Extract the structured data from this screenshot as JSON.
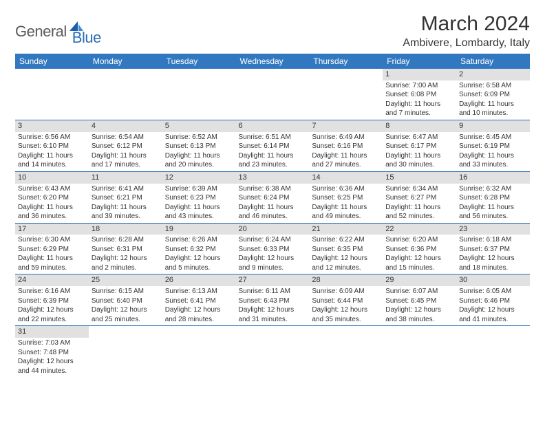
{
  "logo": {
    "dark": "General",
    "blue": "Blue"
  },
  "title": "March 2024",
  "location": "Ambivere, Lombardy, Italy",
  "colors": {
    "header_bg": "#3278c0",
    "header_text": "#ffffff",
    "daynum_bg": "#e1e1e1",
    "row_border": "#2a6db8",
    "text": "#333333",
    "logo_dark": "#5a5a5a",
    "logo_blue": "#2a6db8"
  },
  "typography": {
    "title_fontsize": 30,
    "location_fontsize": 16,
    "header_fontsize": 12,
    "daynum_fontsize": 11,
    "cell_fontsize": 10
  },
  "weekdays": [
    "Sunday",
    "Monday",
    "Tuesday",
    "Wednesday",
    "Thursday",
    "Friday",
    "Saturday"
  ],
  "weeks": [
    [
      null,
      null,
      null,
      null,
      null,
      {
        "n": "1",
        "sunrise": "Sunrise: 7:00 AM",
        "sunset": "Sunset: 6:08 PM",
        "daylight": "Daylight: 11 hours and 7 minutes."
      },
      {
        "n": "2",
        "sunrise": "Sunrise: 6:58 AM",
        "sunset": "Sunset: 6:09 PM",
        "daylight": "Daylight: 11 hours and 10 minutes."
      }
    ],
    [
      {
        "n": "3",
        "sunrise": "Sunrise: 6:56 AM",
        "sunset": "Sunset: 6:10 PM",
        "daylight": "Daylight: 11 hours and 14 minutes."
      },
      {
        "n": "4",
        "sunrise": "Sunrise: 6:54 AM",
        "sunset": "Sunset: 6:12 PM",
        "daylight": "Daylight: 11 hours and 17 minutes."
      },
      {
        "n": "5",
        "sunrise": "Sunrise: 6:52 AM",
        "sunset": "Sunset: 6:13 PM",
        "daylight": "Daylight: 11 hours and 20 minutes."
      },
      {
        "n": "6",
        "sunrise": "Sunrise: 6:51 AM",
        "sunset": "Sunset: 6:14 PM",
        "daylight": "Daylight: 11 hours and 23 minutes."
      },
      {
        "n": "7",
        "sunrise": "Sunrise: 6:49 AM",
        "sunset": "Sunset: 6:16 PM",
        "daylight": "Daylight: 11 hours and 27 minutes."
      },
      {
        "n": "8",
        "sunrise": "Sunrise: 6:47 AM",
        "sunset": "Sunset: 6:17 PM",
        "daylight": "Daylight: 11 hours and 30 minutes."
      },
      {
        "n": "9",
        "sunrise": "Sunrise: 6:45 AM",
        "sunset": "Sunset: 6:19 PM",
        "daylight": "Daylight: 11 hours and 33 minutes."
      }
    ],
    [
      {
        "n": "10",
        "sunrise": "Sunrise: 6:43 AM",
        "sunset": "Sunset: 6:20 PM",
        "daylight": "Daylight: 11 hours and 36 minutes."
      },
      {
        "n": "11",
        "sunrise": "Sunrise: 6:41 AM",
        "sunset": "Sunset: 6:21 PM",
        "daylight": "Daylight: 11 hours and 39 minutes."
      },
      {
        "n": "12",
        "sunrise": "Sunrise: 6:39 AM",
        "sunset": "Sunset: 6:23 PM",
        "daylight": "Daylight: 11 hours and 43 minutes."
      },
      {
        "n": "13",
        "sunrise": "Sunrise: 6:38 AM",
        "sunset": "Sunset: 6:24 PM",
        "daylight": "Daylight: 11 hours and 46 minutes."
      },
      {
        "n": "14",
        "sunrise": "Sunrise: 6:36 AM",
        "sunset": "Sunset: 6:25 PM",
        "daylight": "Daylight: 11 hours and 49 minutes."
      },
      {
        "n": "15",
        "sunrise": "Sunrise: 6:34 AM",
        "sunset": "Sunset: 6:27 PM",
        "daylight": "Daylight: 11 hours and 52 minutes."
      },
      {
        "n": "16",
        "sunrise": "Sunrise: 6:32 AM",
        "sunset": "Sunset: 6:28 PM",
        "daylight": "Daylight: 11 hours and 56 minutes."
      }
    ],
    [
      {
        "n": "17",
        "sunrise": "Sunrise: 6:30 AM",
        "sunset": "Sunset: 6:29 PM",
        "daylight": "Daylight: 11 hours and 59 minutes."
      },
      {
        "n": "18",
        "sunrise": "Sunrise: 6:28 AM",
        "sunset": "Sunset: 6:31 PM",
        "daylight": "Daylight: 12 hours and 2 minutes."
      },
      {
        "n": "19",
        "sunrise": "Sunrise: 6:26 AM",
        "sunset": "Sunset: 6:32 PM",
        "daylight": "Daylight: 12 hours and 5 minutes."
      },
      {
        "n": "20",
        "sunrise": "Sunrise: 6:24 AM",
        "sunset": "Sunset: 6:33 PM",
        "daylight": "Daylight: 12 hours and 9 minutes."
      },
      {
        "n": "21",
        "sunrise": "Sunrise: 6:22 AM",
        "sunset": "Sunset: 6:35 PM",
        "daylight": "Daylight: 12 hours and 12 minutes."
      },
      {
        "n": "22",
        "sunrise": "Sunrise: 6:20 AM",
        "sunset": "Sunset: 6:36 PM",
        "daylight": "Daylight: 12 hours and 15 minutes."
      },
      {
        "n": "23",
        "sunrise": "Sunrise: 6:18 AM",
        "sunset": "Sunset: 6:37 PM",
        "daylight": "Daylight: 12 hours and 18 minutes."
      }
    ],
    [
      {
        "n": "24",
        "sunrise": "Sunrise: 6:16 AM",
        "sunset": "Sunset: 6:39 PM",
        "daylight": "Daylight: 12 hours and 22 minutes."
      },
      {
        "n": "25",
        "sunrise": "Sunrise: 6:15 AM",
        "sunset": "Sunset: 6:40 PM",
        "daylight": "Daylight: 12 hours and 25 minutes."
      },
      {
        "n": "26",
        "sunrise": "Sunrise: 6:13 AM",
        "sunset": "Sunset: 6:41 PM",
        "daylight": "Daylight: 12 hours and 28 minutes."
      },
      {
        "n": "27",
        "sunrise": "Sunrise: 6:11 AM",
        "sunset": "Sunset: 6:43 PM",
        "daylight": "Daylight: 12 hours and 31 minutes."
      },
      {
        "n": "28",
        "sunrise": "Sunrise: 6:09 AM",
        "sunset": "Sunset: 6:44 PM",
        "daylight": "Daylight: 12 hours and 35 minutes."
      },
      {
        "n": "29",
        "sunrise": "Sunrise: 6:07 AM",
        "sunset": "Sunset: 6:45 PM",
        "daylight": "Daylight: 12 hours and 38 minutes."
      },
      {
        "n": "30",
        "sunrise": "Sunrise: 6:05 AM",
        "sunset": "Sunset: 6:46 PM",
        "daylight": "Daylight: 12 hours and 41 minutes."
      }
    ],
    [
      {
        "n": "31",
        "sunrise": "Sunrise: 7:03 AM",
        "sunset": "Sunset: 7:48 PM",
        "daylight": "Daylight: 12 hours and 44 minutes."
      },
      null,
      null,
      null,
      null,
      null,
      null
    ]
  ]
}
